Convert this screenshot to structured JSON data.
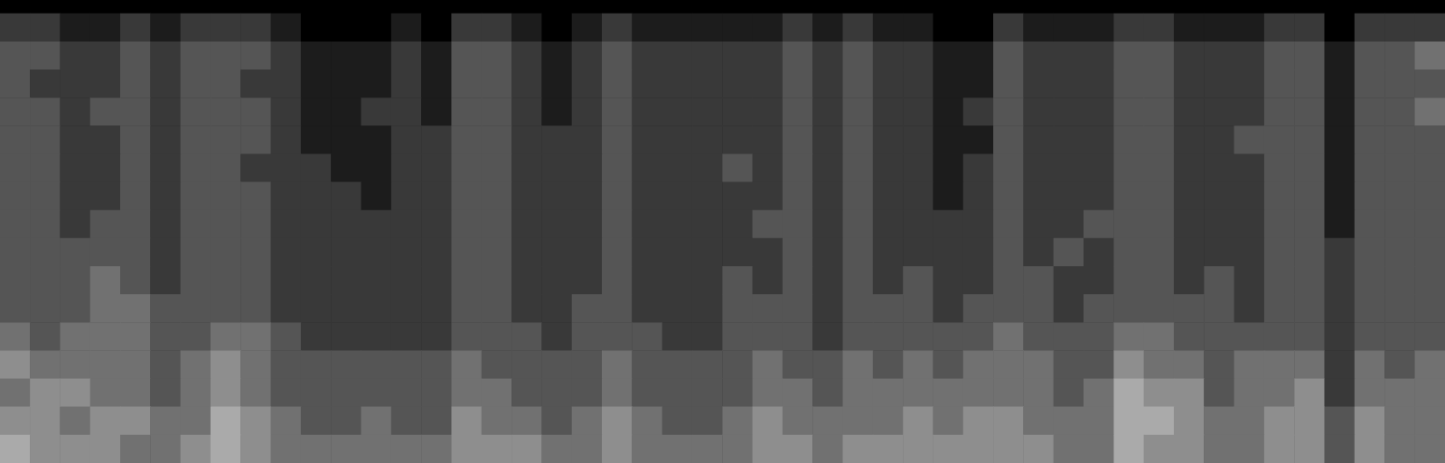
{
  "chart_data": {
    "type": "heatmap",
    "tick_labels": false,
    "grid": false,
    "zlim": [
      0,
      9
    ],
    "cells": [
      [
        2,
        2,
        1,
        1,
        2,
        1,
        2,
        2,
        2,
        1,
        0,
        0,
        0,
        1,
        0,
        2,
        2,
        1,
        0,
        1,
        2,
        1,
        1,
        1,
        1,
        1,
        2,
        1,
        2,
        1,
        1,
        0,
        0,
        2,
        1,
        1,
        1,
        2,
        2,
        1,
        1,
        1,
        2,
        2,
        0,
        2,
        2,
        2
      ],
      [
        3,
        3,
        2,
        2,
        3,
        2,
        3,
        3,
        3,
        2,
        1,
        1,
        1,
        2,
        1,
        3,
        3,
        2,
        1,
        2,
        3,
        2,
        2,
        2,
        2,
        2,
        3,
        2,
        3,
        2,
        2,
        1,
        1,
        3,
        2,
        2,
        2,
        3,
        3,
        2,
        2,
        2,
        3,
        3,
        1,
        3,
        3,
        4
      ],
      [
        3,
        2,
        2,
        2,
        3,
        2,
        3,
        3,
        2,
        2,
        1,
        1,
        1,
        2,
        1,
        3,
        3,
        2,
        1,
        2,
        3,
        2,
        2,
        2,
        2,
        2,
        3,
        2,
        3,
        2,
        2,
        1,
        1,
        3,
        2,
        2,
        2,
        3,
        3,
        2,
        2,
        2,
        3,
        3,
        1,
        3,
        3,
        3
      ],
      [
        3,
        3,
        2,
        3,
        3,
        2,
        3,
        3,
        3,
        2,
        1,
        1,
        2,
        2,
        1,
        3,
        3,
        2,
        1,
        2,
        3,
        2,
        2,
        2,
        2,
        2,
        3,
        2,
        3,
        2,
        2,
        1,
        2,
        3,
        2,
        2,
        2,
        3,
        3,
        2,
        2,
        2,
        3,
        3,
        1,
        3,
        3,
        4
      ],
      [
        3,
        3,
        2,
        2,
        3,
        2,
        3,
        3,
        3,
        2,
        1,
        1,
        1,
        2,
        2,
        3,
        3,
        2,
        2,
        2,
        3,
        2,
        2,
        2,
        2,
        2,
        3,
        2,
        3,
        2,
        2,
        1,
        1,
        3,
        2,
        2,
        2,
        3,
        3,
        2,
        2,
        3,
        3,
        3,
        1,
        3,
        3,
        3
      ],
      [
        3,
        3,
        2,
        2,
        3,
        2,
        3,
        3,
        2,
        2,
        2,
        1,
        1,
        2,
        2,
        3,
        3,
        2,
        2,
        2,
        3,
        2,
        2,
        2,
        3,
        2,
        3,
        2,
        3,
        2,
        2,
        1,
        2,
        3,
        2,
        2,
        2,
        3,
        3,
        2,
        2,
        2,
        3,
        3,
        1,
        3,
        3,
        3
      ],
      [
        3,
        3,
        2,
        2,
        3,
        2,
        3,
        3,
        3,
        2,
        2,
        2,
        1,
        2,
        2,
        3,
        3,
        2,
        2,
        2,
        3,
        2,
        2,
        2,
        2,
        2,
        3,
        2,
        3,
        2,
        2,
        1,
        2,
        3,
        2,
        2,
        2,
        3,
        3,
        2,
        2,
        2,
        3,
        3,
        1,
        3,
        3,
        3
      ],
      [
        3,
        3,
        2,
        3,
        3,
        2,
        3,
        3,
        3,
        2,
        2,
        2,
        2,
        2,
        2,
        3,
        3,
        2,
        2,
        2,
        3,
        2,
        2,
        2,
        2,
        3,
        3,
        2,
        3,
        2,
        2,
        2,
        2,
        3,
        2,
        2,
        3,
        3,
        3,
        2,
        2,
        2,
        3,
        3,
        1,
        3,
        3,
        3
      ],
      [
        3,
        3,
        3,
        3,
        3,
        2,
        3,
        3,
        3,
        2,
        2,
        2,
        2,
        2,
        2,
        3,
        3,
        2,
        2,
        2,
        3,
        2,
        2,
        2,
        2,
        2,
        3,
        2,
        3,
        2,
        2,
        2,
        2,
        3,
        2,
        3,
        2,
        3,
        3,
        2,
        2,
        2,
        3,
        3,
        2,
        3,
        3,
        3
      ],
      [
        3,
        3,
        3,
        4,
        3,
        2,
        3,
        3,
        3,
        2,
        2,
        2,
        2,
        2,
        2,
        3,
        3,
        2,
        2,
        2,
        3,
        2,
        2,
        2,
        3,
        2,
        3,
        2,
        3,
        2,
        3,
        2,
        2,
        3,
        3,
        2,
        2,
        3,
        3,
        2,
        3,
        2,
        3,
        3,
        2,
        3,
        3,
        3
      ],
      [
        3,
        3,
        3,
        4,
        4,
        3,
        3,
        3,
        3,
        2,
        2,
        2,
        2,
        2,
        2,
        3,
        3,
        2,
        2,
        3,
        3,
        2,
        2,
        2,
        3,
        3,
        3,
        2,
        3,
        3,
        3,
        2,
        3,
        3,
        3,
        2,
        3,
        3,
        3,
        3,
        3,
        2,
        3,
        3,
        2,
        3,
        3,
        3
      ],
      [
        4,
        3,
        4,
        4,
        4,
        3,
        3,
        4,
        4,
        3,
        2,
        2,
        2,
        2,
        2,
        3,
        3,
        3,
        2,
        3,
        3,
        3,
        2,
        2,
        3,
        3,
        3,
        2,
        3,
        3,
        3,
        3,
        3,
        4,
        3,
        3,
        3,
        4,
        4,
        3,
        3,
        3,
        3,
        3,
        2,
        3,
        3,
        3
      ],
      [
        5,
        4,
        4,
        4,
        4,
        3,
        4,
        5,
        4,
        3,
        3,
        3,
        3,
        3,
        3,
        4,
        3,
        3,
        3,
        3,
        4,
        3,
        3,
        3,
        3,
        4,
        3,
        3,
        4,
        3,
        4,
        3,
        4,
        4,
        4,
        3,
        3,
        5,
        4,
        4,
        3,
        4,
        4,
        4,
        2,
        4,
        3,
        4
      ],
      [
        4,
        5,
        5,
        4,
        4,
        3,
        4,
        5,
        4,
        3,
        3,
        3,
        3,
        3,
        3,
        4,
        4,
        3,
        3,
        3,
        4,
        3,
        3,
        3,
        3,
        4,
        4,
        3,
        4,
        4,
        4,
        4,
        4,
        4,
        4,
        3,
        4,
        6,
        5,
        5,
        3,
        4,
        4,
        5,
        2,
        4,
        4,
        4
      ],
      [
        5,
        5,
        4,
        5,
        5,
        4,
        4,
        6,
        5,
        4,
        3,
        3,
        4,
        3,
        3,
        5,
        4,
        4,
        3,
        4,
        5,
        4,
        3,
        3,
        4,
        5,
        4,
        4,
        4,
        4,
        5,
        4,
        5,
        5,
        4,
        4,
        4,
        6,
        6,
        5,
        4,
        4,
        5,
        5,
        3,
        5,
        4,
        4
      ],
      [
        6,
        5,
        5,
        5,
        4,
        4,
        5,
        6,
        5,
        4,
        4,
        4,
        4,
        4,
        4,
        5,
        5,
        5,
        4,
        4,
        5,
        4,
        4,
        4,
        4,
        5,
        5,
        4,
        5,
        5,
        5,
        5,
        5,
        5,
        5,
        4,
        4,
        6,
        5,
        5,
        4,
        4,
        5,
        5,
        3,
        5,
        4,
        4
      ]
    ]
  }
}
